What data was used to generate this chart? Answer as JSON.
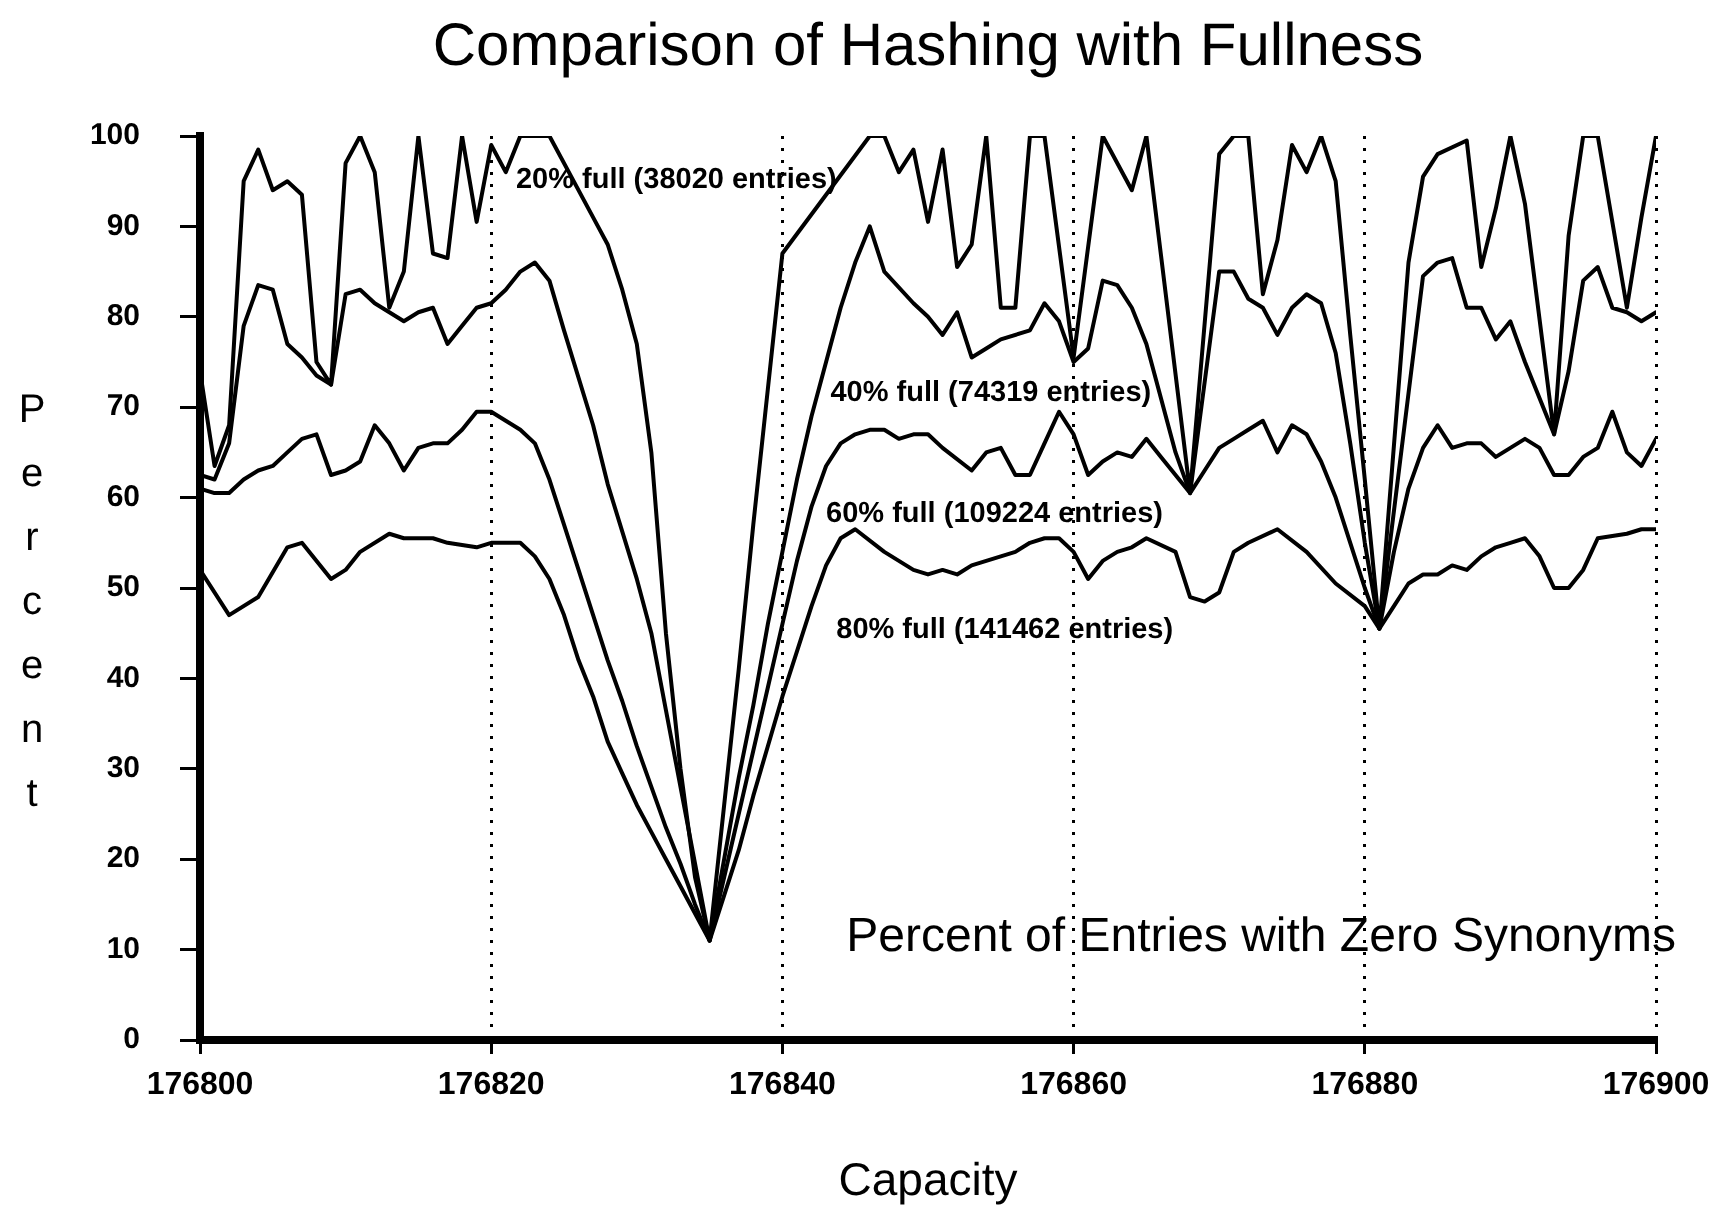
{
  "chart_data": {
    "type": "line",
    "title": "Comparison of Hashing with Fullness",
    "xlabel": "Capacity",
    "ylabel": "Percent",
    "annotations": [
      "Percent of Entries with Zero Synonyms"
    ],
    "xlim": [
      176800,
      176900
    ],
    "xticks": [
      176800,
      176820,
      176840,
      176860,
      176880,
      176900
    ],
    "ylim": [
      0,
      100
    ],
    "yticks": [
      0,
      10,
      20,
      30,
      40,
      50,
      60,
      70,
      80,
      90,
      100
    ],
    "grid": "x",
    "series": [
      {
        "name": "20% full (38020 entries)",
        "color": "#000000",
        "x": [
          176800,
          176801,
          176802,
          176803,
          176804,
          176805,
          176806,
          176807,
          176808,
          176809,
          176810,
          176811,
          176812,
          176813,
          176814,
          176815,
          176816,
          176817,
          176818,
          176819,
          176820,
          176821,
          176822,
          176824,
          176827,
          176828,
          176829,
          176830,
          176831,
          176832,
          176833,
          176834,
          176835,
          176836,
          176837,
          176838,
          176839,
          176840,
          176846,
          176847,
          176848,
          176849,
          176850,
          176851,
          176852,
          176853,
          176854,
          176855,
          176856,
          176857,
          176858,
          176860,
          176862,
          176864,
          176865,
          176868,
          176870,
          176871,
          176872,
          176873,
          176874,
          176875,
          176876,
          176877,
          176878,
          176879,
          176880,
          176881,
          176883,
          176884,
          176885,
          176887,
          176888,
          176889,
          176890,
          176891,
          176893,
          176894,
          176895,
          176896,
          176898,
          176899,
          176900
        ],
        "values": [
          74,
          63.5,
          68,
          95,
          98.5,
          94,
          95,
          93.5,
          75,
          72.5,
          97,
          100,
          96,
          81,
          85,
          100,
          87,
          86.5,
          100,
          90.5,
          99,
          96,
          100,
          100,
          91,
          88,
          83,
          77,
          65,
          45,
          30,
          18,
          11,
          26,
          41,
          57,
          72,
          87,
          100,
          100,
          96,
          98.5,
          90.5,
          98.5,
          85.5,
          88,
          100,
          81,
          81,
          100,
          100,
          75.5,
          100,
          94,
          100,
          60.5,
          98,
          100,
          100,
          82.5,
          88.5,
          99,
          96,
          100,
          95,
          78,
          62,
          45.5,
          86,
          95.5,
          98,
          99.5,
          85.5,
          92,
          100,
          92.5,
          67,
          89,
          100,
          100,
          81,
          91,
          100
        ]
      },
      {
        "name": "40% full (74319 entries)",
        "color": "#000000",
        "x": [
          176800,
          176801,
          176802,
          176803,
          176804,
          176805,
          176806,
          176807,
          176808,
          176809,
          176810,
          176811,
          176812,
          176813,
          176814,
          176815,
          176816,
          176817,
          176818,
          176819,
          176820,
          176821,
          176822,
          176823,
          176824,
          176825,
          176827,
          176828,
          176830,
          176831,
          176832,
          176833,
          176834,
          176835,
          176836,
          176837,
          176838,
          176839,
          176840,
          176841,
          176842,
          176843,
          176844,
          176845,
          176846,
          176847,
          176849,
          176850,
          176851,
          176852,
          176853,
          176854,
          176855,
          176857,
          176858,
          176859,
          176860,
          176861,
          176862,
          176863,
          176864,
          176865,
          176866,
          176867,
          176868,
          176870,
          176871,
          176872,
          176873,
          176874,
          176875,
          176876,
          176877,
          176878,
          176879,
          176880,
          176881,
          176884,
          176885,
          176886,
          176887,
          176888,
          176889,
          176890,
          176891,
          176893,
          176894,
          176895,
          176896,
          176897,
          176898,
          176899,
          176900
        ],
        "values": [
          62.5,
          62,
          66,
          79,
          83.5,
          83,
          77,
          75.5,
          73.5,
          72.5,
          82.5,
          83,
          81.5,
          80.5,
          79.5,
          80.5,
          81,
          77,
          79,
          81,
          81.5,
          83,
          85,
          86,
          84,
          78.5,
          68,
          61.5,
          51,
          45,
          36.5,
          28,
          19.5,
          11,
          20,
          29,
          37,
          46,
          54,
          62,
          69,
          75,
          81,
          86,
          90,
          85,
          81.5,
          80,
          78,
          80.5,
          75.5,
          76.5,
          77.5,
          78.5,
          81.5,
          79.5,
          75,
          76.5,
          84,
          83.5,
          81,
          77,
          71,
          65,
          60.5,
          85,
          85,
          82,
          81,
          78,
          81,
          82.5,
          81.5,
          76,
          66,
          55,
          45.5,
          84.5,
          86,
          86.5,
          81,
          81,
          77.5,
          79.5,
          75,
          67,
          74,
          84,
          85.5,
          81,
          80.5,
          79.5,
          80.5
        ]
      },
      {
        "name": "60% full (109224 entries)",
        "color": "#000000",
        "x": [
          176800,
          176801,
          176802,
          176803,
          176804,
          176805,
          176806,
          176807,
          176808,
          176809,
          176810,
          176811,
          176812,
          176813,
          176814,
          176815,
          176816,
          176817,
          176818,
          176819,
          176820,
          176821,
          176822,
          176823,
          176824,
          176825,
          176826,
          176827,
          176828,
          176829,
          176830,
          176831,
          176832,
          176833,
          176834,
          176835,
          176836,
          176837,
          176838,
          176839,
          176840,
          176841,
          176842,
          176843,
          176844,
          176845,
          176846,
          176847,
          176848,
          176849,
          176850,
          176851,
          176853,
          176854,
          176855,
          176856,
          176857,
          176858,
          176859,
          176860,
          176861,
          176862,
          176863,
          176864,
          176865,
          176866,
          176868,
          176869,
          176870,
          176871,
          176872,
          176873,
          176874,
          176875,
          176876,
          176877,
          176878,
          176879,
          176880,
          176881,
          176882,
          176883,
          176884,
          176885,
          176886,
          176887,
          176888,
          176889,
          176890,
          176891,
          176892,
          176893,
          176894,
          176895,
          176896,
          176897,
          176898,
          176899,
          176900
        ],
        "values": [
          61,
          60.5,
          60.5,
          62,
          63,
          63.5,
          65,
          66.5,
          67,
          62.5,
          63,
          64,
          68,
          66,
          63,
          65.5,
          66,
          66,
          67.5,
          69.5,
          69.5,
          68.5,
          67.5,
          66,
          62,
          57,
          52,
          47,
          42,
          37.5,
          32.5,
          28,
          23.5,
          19.5,
          15,
          11,
          18,
          25,
          32,
          39,
          46,
          53,
          59,
          63.5,
          66,
          67,
          67.5,
          67.5,
          66.5,
          67,
          67,
          65.5,
          63,
          65,
          65.5,
          62.5,
          62.5,
          66,
          69.5,
          67,
          62.5,
          64,
          65,
          64.5,
          66.5,
          64.5,
          60.5,
          63,
          65.5,
          66.5,
          67.5,
          68.5,
          65,
          68,
          67,
          64,
          60,
          55,
          50,
          45.5,
          54,
          61,
          65.5,
          68,
          65.5,
          66,
          66,
          64.5,
          65.5,
          66.5,
          65.5,
          62.5,
          62.5,
          64.5,
          65.5,
          69.5,
          65,
          63.5,
          66.5
        ]
      },
      {
        "name": "80% full (141462 entries)",
        "color": "#000000",
        "x": [
          176800,
          176802,
          176804,
          176806,
          176807,
          176809,
          176810,
          176811,
          176813,
          176814,
          176816,
          176817,
          176819,
          176820,
          176822,
          176823,
          176824,
          176825,
          176826,
          176827,
          176828,
          176829,
          176830,
          176831,
          176832,
          176833,
          176834,
          176835,
          176836,
          176837,
          176838,
          176839,
          176840,
          176841,
          176842,
          176843,
          176844,
          176845,
          176847,
          176849,
          176850,
          176851,
          176852,
          176853,
          176855,
          176856,
          176857,
          176858,
          176859,
          176860,
          176861,
          176862,
          176863,
          176864,
          176865,
          176867,
          176868,
          176869,
          176870,
          176871,
          176872,
          176874,
          176876,
          176878,
          176880,
          176881,
          176882,
          176883,
          176884,
          176885,
          176886,
          176887,
          176888,
          176889,
          176890,
          176891,
          176892,
          176893,
          176894,
          176895,
          176896,
          176898,
          176899,
          176900
        ],
        "values": [
          52,
          47,
          49,
          54.5,
          55,
          51,
          52,
          54,
          56,
          55.5,
          55.5,
          55,
          54.5,
          55,
          55,
          53.5,
          51,
          47,
          42,
          38,
          33,
          29.5,
          26,
          23,
          20,
          17,
          14,
          11,
          16,
          21,
          27,
          32.5,
          38,
          43,
          48,
          52.5,
          55.5,
          56.5,
          54,
          52,
          51.5,
          52,
          51.5,
          52.5,
          53.5,
          54,
          55,
          55.5,
          55.5,
          54,
          51,
          53,
          54,
          54.5,
          55.5,
          54,
          49,
          48.5,
          49.5,
          54,
          55,
          56.5,
          54,
          50.5,
          48,
          45.5,
          48,
          50.5,
          51.5,
          51.5,
          52.5,
          52,
          53.5,
          54.5,
          55,
          55.5,
          53.5,
          50,
          50,
          52,
          55.5,
          56,
          56.5,
          56.5
        ]
      }
    ]
  }
}
